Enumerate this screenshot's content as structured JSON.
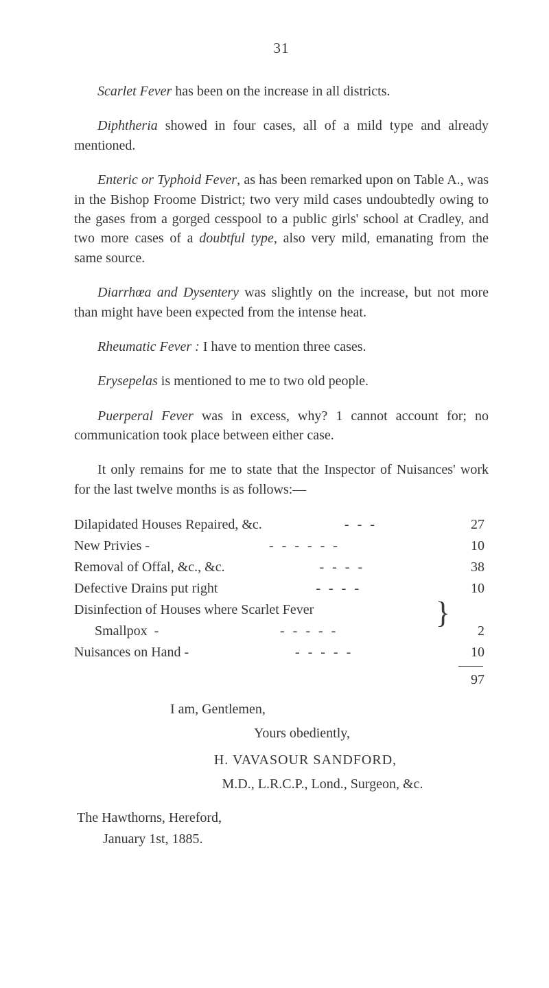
{
  "page_number": "31",
  "p1_a": "Scarlet Fever",
  "p1_b": " has been on the increase in all districts.",
  "p2_a": "Diphtheria",
  "p2_b": " showed in four cases, all of a mild type and already mentioned.",
  "p3_a": "Enteric or Typhoid Fever",
  "p3_b": ", as has been remarked upon on Table A., was in the Bishop Froome District; two very mild cases undoubtedly owing to the gases from a gorged cesspool to a public girls' school at Cradley, and two more cases of a ",
  "p3_c": "doubtful type",
  "p3_d": ", also very mild, emanating from the same source.",
  "p4_a": "Diarrhœa and Dysentery",
  "p4_b": " was slightly on the increase, but not more than might have been expected from the intense heat.",
  "p5_a": "Rheumatic Fever :",
  "p5_b": " I have to mention three cases.",
  "p6_a": "Erysepelas",
  "p6_b": " is mentioned to me to two old people.",
  "p7_a": "Puerperal Fever",
  "p7_b": " was in excess, why? 1 cannot account for; no communication took place between either case.",
  "p8": "It only remains for me to state that the Inspector of Nuisances' work for the last twelve months is as follows:—",
  "list": {
    "rows": [
      {
        "label": "Dilapidated Houses Repaired, &c.",
        "dashes": "---",
        "value": "27"
      },
      {
        "label": "New Privies   -",
        "dashes": "------",
        "value": "10"
      },
      {
        "label": "Removal of Offal, &c., &c.",
        "dashes": "----",
        "value": "38"
      },
      {
        "label": "Defective Drains put right",
        "dashes": "----",
        "value": "10"
      },
      {
        "label": "Disinfection of Houses where Scarlet Fever",
        "dashes": "",
        "value": ""
      },
      {
        "label": "      Smallpox  -",
        "dashes": "-----",
        "value": "2"
      },
      {
        "label": "Nuisances on Hand  -",
        "dashes": "-----",
        "value": "10"
      }
    ],
    "total": "97"
  },
  "closing": {
    "line1": "I am, Gentlemen,",
    "line2": "Yours obediently,",
    "name": "H. VAVASOUR SANDFORD,",
    "cred": "M.D., L.R.C.P., Lond., Surgeon, &c.",
    "addr1": "The Hawthorns, Hereford,",
    "addr2": "January 1st, 1885."
  }
}
